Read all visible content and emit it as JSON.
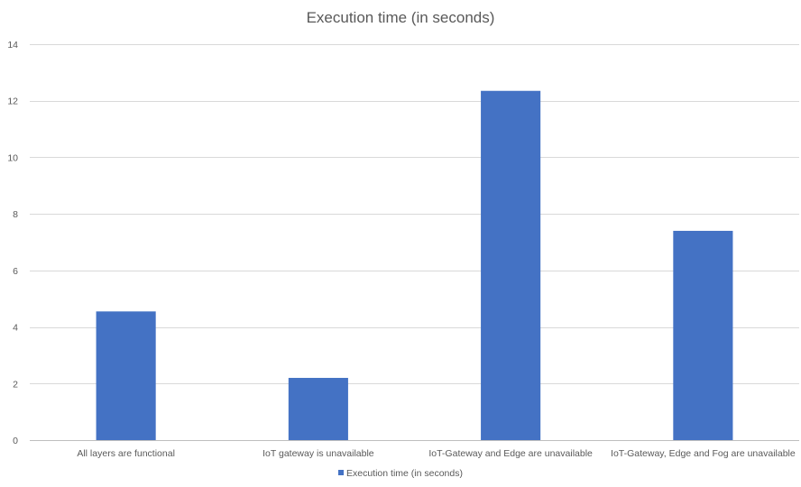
{
  "chart_data": {
    "type": "bar",
    "title": "Execution time (in seconds)",
    "categories": [
      "All layers are functional",
      "IoT gateway is unavailable",
      "IoT-Gateway and Edge are unavailable",
      "IoT-Gateway, Edge and Fog are unavailable"
    ],
    "series": [
      {
        "name": "Execution time (in seconds)",
        "values": [
          4.55,
          2.2,
          12.35,
          7.4
        ],
        "color": "#4472C4"
      }
    ],
    "xlabel": "",
    "ylabel": "",
    "ylim": [
      0,
      14
    ],
    "yticks": [
      0,
      2,
      4,
      6,
      8,
      10,
      12,
      14
    ],
    "grid": true,
    "legend": "bottom"
  }
}
